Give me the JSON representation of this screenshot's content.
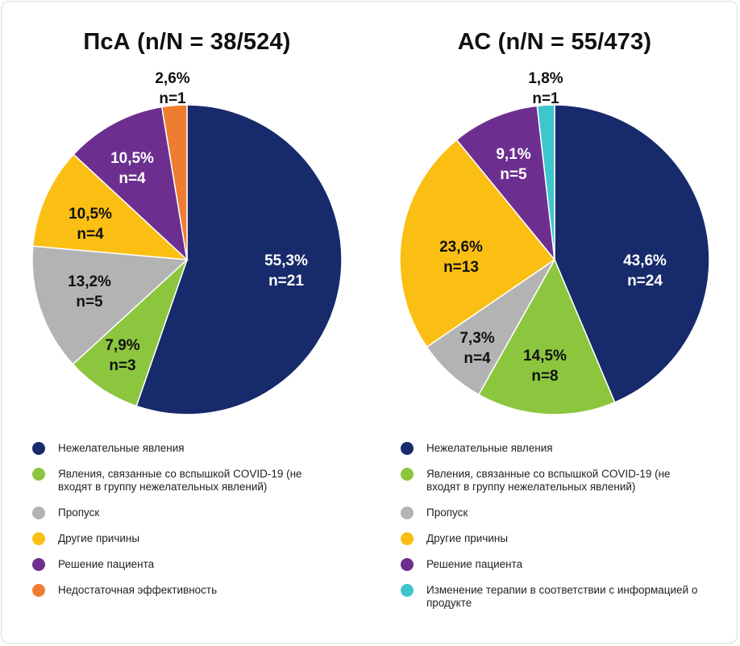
{
  "chart_data": [
    {
      "type": "pie",
      "title": "ПсА (n/N = 38/524)",
      "slices": [
        {
          "label": "Нежелательные явления",
          "percent_text": "55,3%",
          "n_text": "n=21",
          "value": 55.3,
          "color": "#172a6b",
          "text_color": "#ffffff"
        },
        {
          "label": "Явления, связанные со вспышкой COVID-19 (не входят в группу нежелательных явлений)",
          "percent_text": "7,9%",
          "n_text": "n=3",
          "value": 7.9,
          "color": "#8cc63f",
          "text_color": "#111111"
        },
        {
          "label": "Пропуск",
          "percent_text": "13,2%",
          "n_text": "n=5",
          "value": 13.2,
          "color": "#b3b3b3",
          "text_color": "#111111"
        },
        {
          "label": "Другие причины",
          "percent_text": "10,5%",
          "n_text": "n=4",
          "value": 10.5,
          "color": "#fbbf14",
          "text_color": "#111111"
        },
        {
          "label": "Решение пациента",
          "percent_text": "10,5%",
          "n_text": "n=4",
          "value": 10.5,
          "color": "#6c2f8f",
          "text_color": "#ffffff"
        },
        {
          "label": "Недостаточная эффективность",
          "percent_text": "2,6%",
          "n_text": "n=1",
          "value": 2.6,
          "color": "#ee7d31",
          "text_color": "#111111"
        }
      ]
    },
    {
      "type": "pie",
      "title": "АС (n/N = 55/473)",
      "slices": [
        {
          "label": "Нежелательные явления",
          "percent_text": "43,6%",
          "n_text": "n=24",
          "value": 43.6,
          "color": "#172a6b",
          "text_color": "#ffffff"
        },
        {
          "label": "Явления, связанные со вспышкой COVID-19 (не входят в группу нежелательных явлений)",
          "percent_text": "14,5%",
          "n_text": "n=8",
          "value": 14.5,
          "color": "#8cc63f",
          "text_color": "#111111"
        },
        {
          "label": "Пропуск",
          "percent_text": "7,3%",
          "n_text": "n=4",
          "value": 7.3,
          "color": "#b3b3b3",
          "text_color": "#111111"
        },
        {
          "label": "Другие причины",
          "percent_text": "23,6%",
          "n_text": "n=13",
          "value": 23.6,
          "color": "#fbbf14",
          "text_color": "#111111"
        },
        {
          "label": "Решение пациента",
          "percent_text": "9,1%",
          "n_text": "n=5",
          "value": 9.1,
          "color": "#6c2f8f",
          "text_color": "#ffffff"
        },
        {
          "label": "Изменение терапии в соответствии с информацией о продукте",
          "percent_text": "1,8%",
          "n_text": "n=1",
          "value": 1.8,
          "color": "#3ec6cc",
          "text_color": "#111111"
        }
      ]
    }
  ]
}
